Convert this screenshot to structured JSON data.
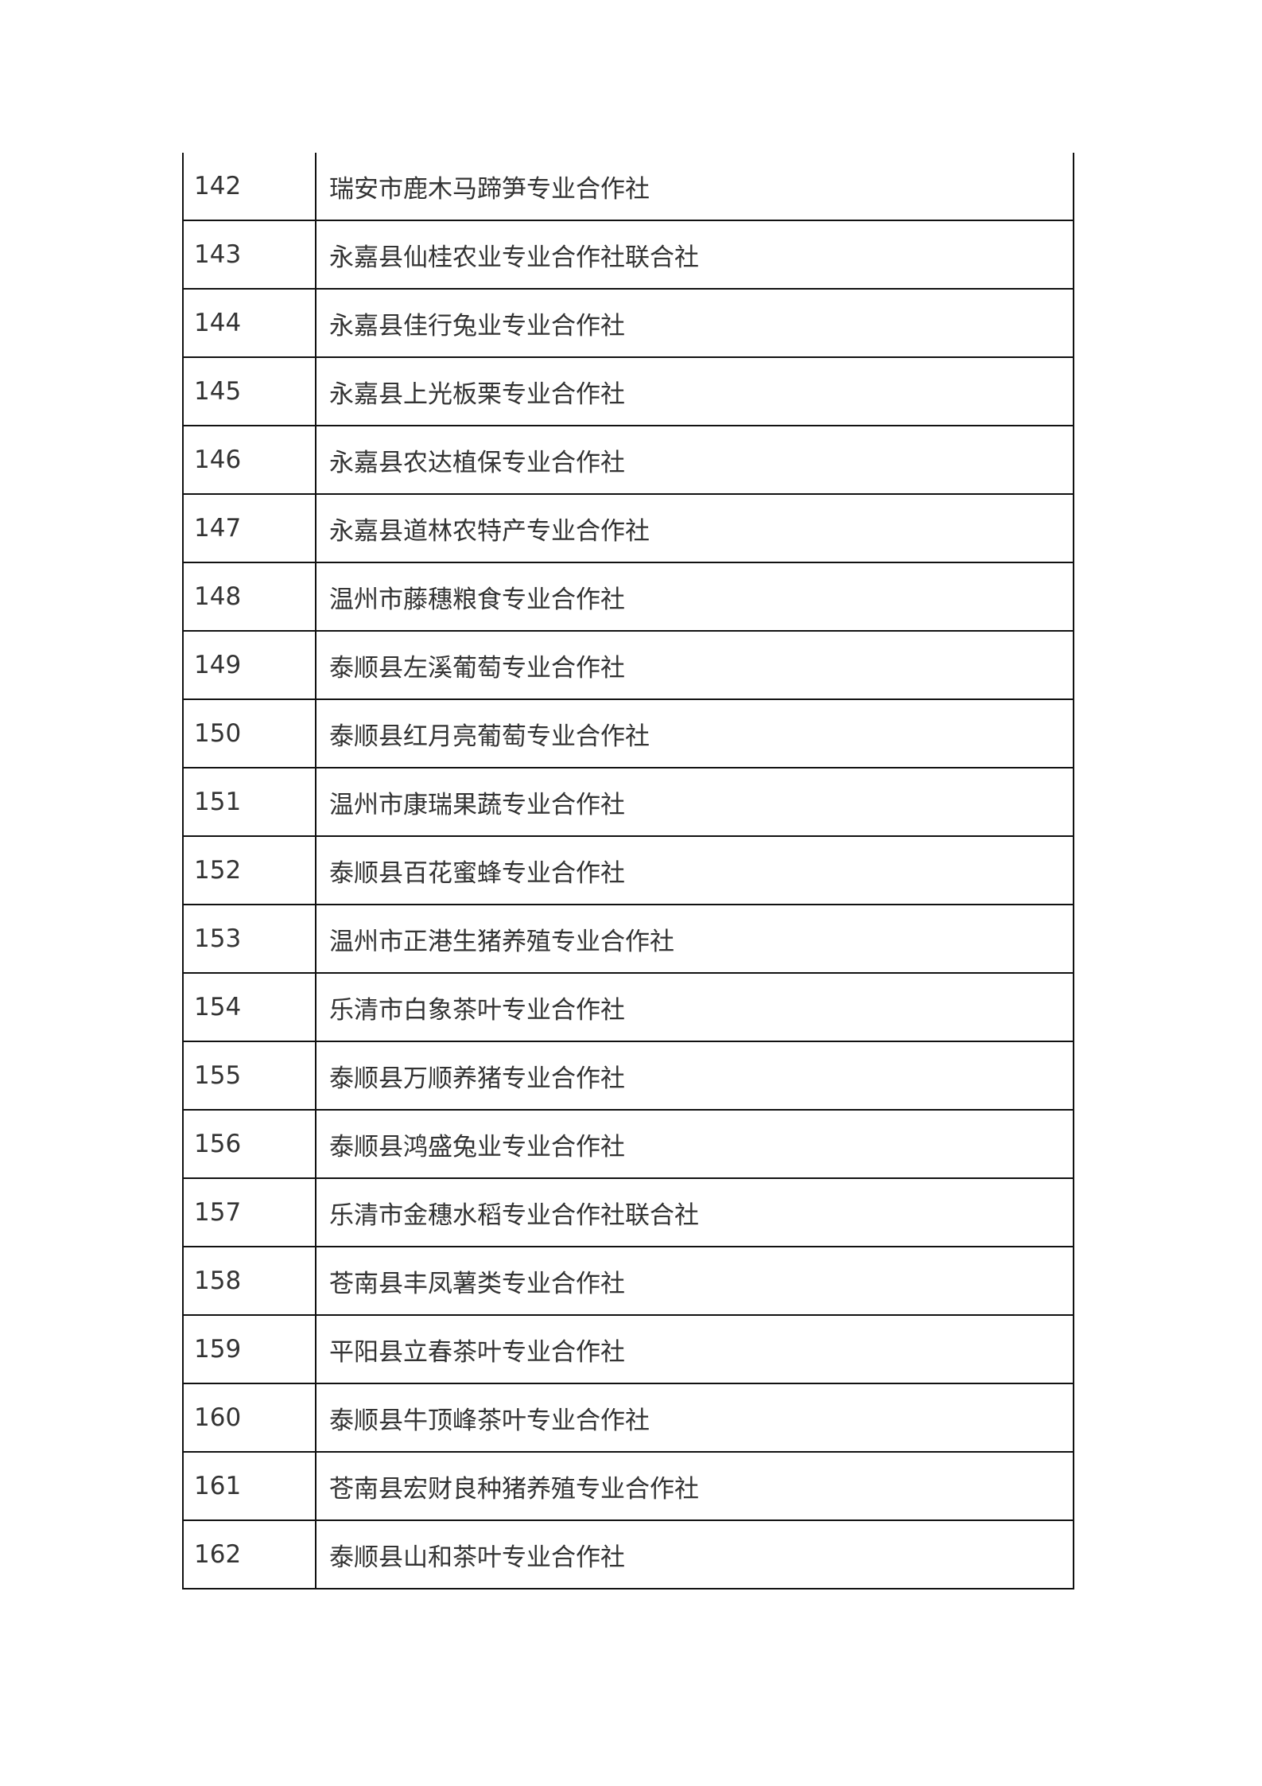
{
  "table": {
    "rows": [
      {
        "no": "142",
        "name": "瑞安市鹿木马蹄笋专业合作社"
      },
      {
        "no": "143",
        "name": "永嘉县仙桂农业专业合作社联合社"
      },
      {
        "no": "144",
        "name": "永嘉县佳行兔业专业合作社"
      },
      {
        "no": "145",
        "name": "永嘉县上光板栗专业合作社"
      },
      {
        "no": "146",
        "name": "永嘉县农达植保专业合作社"
      },
      {
        "no": "147",
        "name": "永嘉县道林农特产专业合作社"
      },
      {
        "no": "148",
        "name": "温州市藤穗粮食专业合作社"
      },
      {
        "no": "149",
        "name": "泰顺县左溪葡萄专业合作社"
      },
      {
        "no": "150",
        "name": "泰顺县红月亮葡萄专业合作社"
      },
      {
        "no": "151",
        "name": "温州市康瑞果蔬专业合作社"
      },
      {
        "no": "152",
        "name": "泰顺县百花蜜蜂专业合作社"
      },
      {
        "no": "153",
        "name": "温州市正港生猪养殖专业合作社"
      },
      {
        "no": "154",
        "name": "乐清市白象茶叶专业合作社"
      },
      {
        "no": "155",
        "name": "泰顺县万顺养猪专业合作社"
      },
      {
        "no": "156",
        "name": "泰顺县鸿盛兔业专业合作社"
      },
      {
        "no": "157",
        "name": "乐清市金穗水稻专业合作社联合社"
      },
      {
        "no": "158",
        "name": "苍南县丰凤薯类专业合作社"
      },
      {
        "no": "159",
        "name": "平阳县立春茶叶专业合作社"
      },
      {
        "no": "160",
        "name": "泰顺县牛顶峰茶叶专业合作社"
      },
      {
        "no": "161",
        "name": "苍南县宏财良种猪养殖专业合作社"
      },
      {
        "no": "162",
        "name": "泰顺县山和茶叶专业合作社"
      }
    ]
  }
}
